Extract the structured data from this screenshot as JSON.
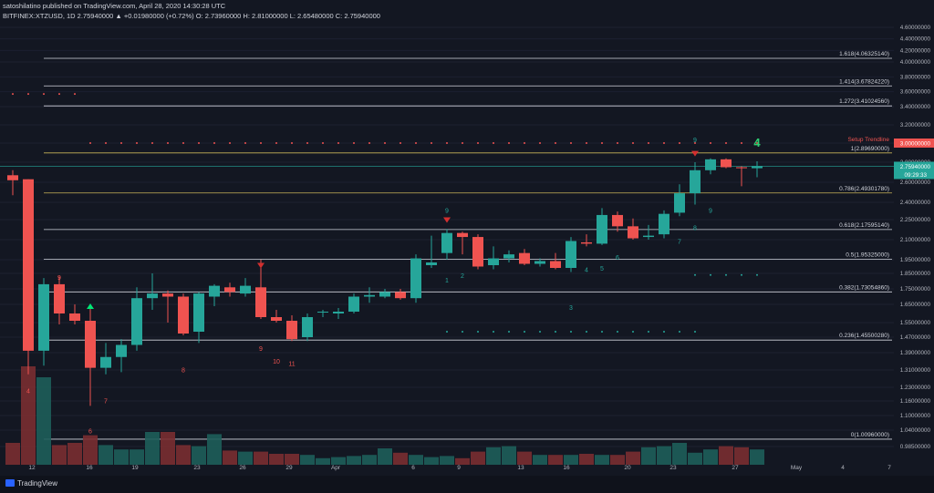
{
  "header": {
    "line1": "satoshilatino published on TradingView.com, April 28, 2020 14:30:28 UTC",
    "line2": "BITFINEX:XTZUSD, 1D  2.75940000  ▲ +0.01980000 (+0.72%)  O: 2.73960000  H: 2.81000000  L: 2.65480000  C: 2.75940000"
  },
  "footer": {
    "brand": "TradingView"
  },
  "colors": {
    "bg": "#131722",
    "up": "#26a69a",
    "down": "#ef5350",
    "fib": "#d1d4dc",
    "fib_gold": "#c9b458",
    "axis_text": "#b2b5be",
    "setup_red": "#ef5350",
    "setup_green": "#26a69a"
  },
  "chart_data": {
    "type": "candlestick",
    "symbol": "BITFINEX:XTZUSD",
    "interval": "1D",
    "x_tick_labels": [
      "12",
      "16",
      "19",
      "23",
      "26",
      "29",
      "Apr",
      "6",
      "9",
      "13",
      "16",
      "20",
      "23",
      "27",
      "May",
      "4",
      "7"
    ],
    "y_ticks": [
      "4.60000000",
      "4.40000000",
      "4.20000000",
      "4.00000000",
      "3.80000000",
      "3.60000000",
      "3.40000000",
      "3.20000000",
      "3.00000000",
      "2.80000000",
      "2.60000000",
      "2.40000000",
      "2.25000000",
      "2.10000000",
      "1.95000000",
      "1.85000000",
      "1.75000000",
      "1.65000000",
      "1.55000000",
      "1.47000000",
      "1.39000000",
      "1.31000000",
      "1.23000000",
      "1.16000000",
      "1.10000000",
      "1.04000000",
      "0.98500000"
    ],
    "candles": [
      {
        "o": 2.67,
        "h": 2.72,
        "l": 2.47,
        "c": 2.62
      },
      {
        "o": 2.63,
        "h": 2.63,
        "l": 1.29,
        "c": 1.4
      },
      {
        "o": 1.4,
        "h": 1.82,
        "l": 1.33,
        "c": 1.78
      },
      {
        "o": 1.78,
        "h": 1.83,
        "l": 1.54,
        "c": 1.6
      },
      {
        "o": 1.6,
        "h": 1.65,
        "l": 1.54,
        "c": 1.56
      },
      {
        "o": 1.56,
        "h": 1.63,
        "l": 1.14,
        "c": 1.32
      },
      {
        "o": 1.32,
        "h": 1.44,
        "l": 1.29,
        "c": 1.37
      },
      {
        "o": 1.37,
        "h": 1.46,
        "l": 1.3,
        "c": 1.43
      },
      {
        "o": 1.43,
        "h": 1.76,
        "l": 1.4,
        "c": 1.69
      },
      {
        "o": 1.69,
        "h": 1.85,
        "l": 1.62,
        "c": 1.72
      },
      {
        "o": 1.72,
        "h": 1.74,
        "l": 1.55,
        "c": 1.7
      },
      {
        "o": 1.7,
        "h": 1.72,
        "l": 1.48,
        "c": 1.49
      },
      {
        "o": 1.5,
        "h": 1.73,
        "l": 1.44,
        "c": 1.72
      },
      {
        "o": 1.7,
        "h": 1.78,
        "l": 1.64,
        "c": 1.77
      },
      {
        "o": 1.76,
        "h": 1.79,
        "l": 1.7,
        "c": 1.73
      },
      {
        "o": 1.72,
        "h": 1.82,
        "l": 1.7,
        "c": 1.77
      },
      {
        "o": 1.76,
        "h": 1.95,
        "l": 1.57,
        "c": 1.58
      },
      {
        "o": 1.58,
        "h": 1.62,
        "l": 1.55,
        "c": 1.56
      },
      {
        "o": 1.56,
        "h": 1.59,
        "l": 1.45,
        "c": 1.46
      },
      {
        "o": 1.47,
        "h": 1.6,
        "l": 1.45,
        "c": 1.58
      },
      {
        "o": 1.61,
        "h": 1.62,
        "l": 1.58,
        "c": 1.61
      },
      {
        "o": 1.6,
        "h": 1.63,
        "l": 1.57,
        "c": 1.61
      },
      {
        "o": 1.61,
        "h": 1.72,
        "l": 1.6,
        "c": 1.7
      },
      {
        "o": 1.7,
        "h": 1.76,
        "l": 1.66,
        "c": 1.71
      },
      {
        "o": 1.7,
        "h": 1.75,
        "l": 1.69,
        "c": 1.73
      },
      {
        "o": 1.73,
        "h": 1.75,
        "l": 1.68,
        "c": 1.69
      },
      {
        "o": 1.69,
        "h": 1.99,
        "l": 1.66,
        "c": 1.96
      },
      {
        "o": 1.91,
        "h": 2.13,
        "l": 1.89,
        "c": 1.93
      },
      {
        "o": 2.0,
        "h": 2.18,
        "l": 1.95,
        "c": 2.15
      },
      {
        "o": 2.15,
        "h": 2.16,
        "l": 1.99,
        "c": 2.12
      },
      {
        "o": 2.12,
        "h": 2.14,
        "l": 1.88,
        "c": 1.9
      },
      {
        "o": 1.91,
        "h": 2.05,
        "l": 1.88,
        "c": 1.96
      },
      {
        "o": 1.96,
        "h": 2.02,
        "l": 1.93,
        "c": 1.99
      },
      {
        "o": 2.0,
        "h": 2.03,
        "l": 1.91,
        "c": 1.92
      },
      {
        "o": 1.92,
        "h": 1.96,
        "l": 1.9,
        "c": 1.94
      },
      {
        "o": 1.94,
        "h": 2.0,
        "l": 1.88,
        "c": 1.89
      },
      {
        "o": 1.89,
        "h": 2.12,
        "l": 1.86,
        "c": 2.09
      },
      {
        "o": 2.08,
        "h": 2.14,
        "l": 2.05,
        "c": 2.07
      },
      {
        "o": 2.07,
        "h": 2.35,
        "l": 2.06,
        "c": 2.29
      },
      {
        "o": 2.29,
        "h": 2.32,
        "l": 2.16,
        "c": 2.2
      },
      {
        "o": 2.2,
        "h": 2.26,
        "l": 2.1,
        "c": 2.11
      },
      {
        "o": 2.12,
        "h": 2.21,
        "l": 2.1,
        "c": 2.13
      },
      {
        "o": 2.14,
        "h": 2.33,
        "l": 2.11,
        "c": 2.3
      },
      {
        "o": 2.31,
        "h": 2.58,
        "l": 2.28,
        "c": 2.49
      },
      {
        "o": 2.49,
        "h": 2.8,
        "l": 2.38,
        "c": 2.72
      },
      {
        "o": 2.72,
        "h": 2.84,
        "l": 2.68,
        "c": 2.83
      },
      {
        "o": 2.83,
        "h": 2.84,
        "l": 2.74,
        "c": 2.75
      },
      {
        "o": 2.75,
        "h": 2.76,
        "l": 2.56,
        "c": 2.74
      },
      {
        "o": 2.74,
        "h": 2.81,
        "l": 2.65,
        "c": 2.76
      }
    ],
    "volumes": [
      0.2,
      0.9,
      0.8,
      0.18,
      0.2,
      0.27,
      0.18,
      0.14,
      0.14,
      0.3,
      0.3,
      0.18,
      0.17,
      0.28,
      0.13,
      0.12,
      0.12,
      0.1,
      0.1,
      0.09,
      0.06,
      0.07,
      0.08,
      0.09,
      0.15,
      0.11,
      0.09,
      0.07,
      0.08,
      0.06,
      0.12,
      0.16,
      0.17,
      0.12,
      0.09,
      0.09,
      0.09,
      0.1,
      0.09,
      0.09,
      0.12,
      0.16,
      0.17,
      0.2,
      0.11,
      0.14,
      0.17,
      0.16,
      0.14
    ],
    "fib_levels": [
      {
        "label": "1.618(4.06325140)",
        "value": 4.0632514
      },
      {
        "label": "1.414(3.67824220)",
        "value": 3.6782422
      },
      {
        "label": "1.272(3.41024560)",
        "value": 3.4102456
      },
      {
        "label": "1(2.89690000)",
        "value": 2.8969,
        "gold": true
      },
      {
        "label": "0.786(2.49301780)",
        "value": 2.4930178,
        "gold": true
      },
      {
        "label": "0.618(2.17595140)",
        "value": 2.1759514
      },
      {
        "label": "0.5(1.95325000)",
        "value": 1.95325
      },
      {
        "label": "0.382(1.73054860)",
        "value": 1.7305486
      },
      {
        "label": "0.236(1.45500280)",
        "value": 1.4550028
      },
      {
        "label": "0(1.00960000)",
        "value": 1.0096
      }
    ],
    "setup_trendline": {
      "label": "Setup Trendline",
      "value": 3.0,
      "price_tag": "3.00000000"
    },
    "current_price": {
      "value": 2.7594,
      "tag": "2.75940000",
      "countdown": "09:29:33"
    },
    "markers_red": [
      {
        "i": 3,
        "t": "9",
        "p": 1.81
      },
      {
        "i": 6,
        "t": "7",
        "p": 1.15
      },
      {
        "i": 11,
        "t": "8",
        "p": 1.3
      },
      {
        "i": 16,
        "t": "9",
        "p": 1.4
      },
      {
        "i": 17,
        "t": "10",
        "p": 1.34
      },
      {
        "i": 18,
        "t": "11",
        "p": 1.33
      },
      {
        "i": 1,
        "t": "4",
        "p": 1.2
      },
      {
        "i": 5,
        "t": "6",
        "p": 1.03
      }
    ],
    "markers_green": [
      {
        "i": 28,
        "t": "9",
        "p": 2.31
      },
      {
        "i": 28,
        "t": "1",
        "p": 1.79
      },
      {
        "i": 29,
        "t": "2",
        "p": 1.82
      },
      {
        "i": 36,
        "t": "3",
        "p": 1.62
      },
      {
        "i": 37,
        "t": "4",
        "p": 1.86
      },
      {
        "i": 38,
        "t": "5",
        "p": 1.87
      },
      {
        "i": 39,
        "t": "6",
        "p": 1.95
      },
      {
        "i": 43,
        "t": "7",
        "p": 2.07
      },
      {
        "i": 44,
        "t": "8",
        "p": 2.17
      },
      {
        "i": 45,
        "t": "9",
        "p": 2.31
      },
      {
        "i": 44,
        "t": "9",
        "p": 3.01
      }
    ]
  }
}
